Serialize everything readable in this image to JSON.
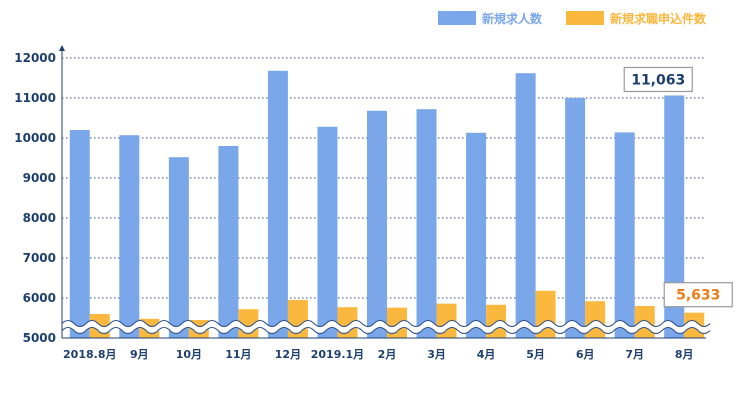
{
  "chart_data": {
    "type": "bar",
    "categories": [
      "2018.8月",
      "9月",
      "10月",
      "11月",
      "12月",
      "2019.1月",
      "2月",
      "3月",
      "4月",
      "5月",
      "6月",
      "7月",
      "8月"
    ],
    "series": [
      {
        "name": "新規求人数",
        "color": "#7aa7ea",
        "values": [
          10200,
          10070,
          9520,
          9800,
          11680,
          10280,
          10680,
          10720,
          10130,
          11620,
          11000,
          10140,
          11063
        ]
      },
      {
        "name": "新規求職申込件数",
        "color": "#fbb83f",
        "values": [
          5600,
          5480,
          5450,
          5720,
          5950,
          5770,
          5760,
          5860,
          5830,
          6180,
          5920,
          5800,
          5633
        ]
      }
    ],
    "y_ticks": [
      "12000",
      "11000",
      "10000",
      "9000",
      "8000",
      "7000",
      "6000",
      "5000"
    ],
    "ylim": [
      5000,
      12000
    ],
    "axis_break": true,
    "grid": "dotted horizontal",
    "legend_position": "top-right",
    "callouts": [
      {
        "series": 0,
        "index": 12,
        "text": "11,063",
        "color": "#1c3f6e"
      },
      {
        "series": 1,
        "index": 12,
        "text": "5,633",
        "color": "#f07c17"
      }
    ],
    "axis_label_color": "#1c3f6e"
  }
}
